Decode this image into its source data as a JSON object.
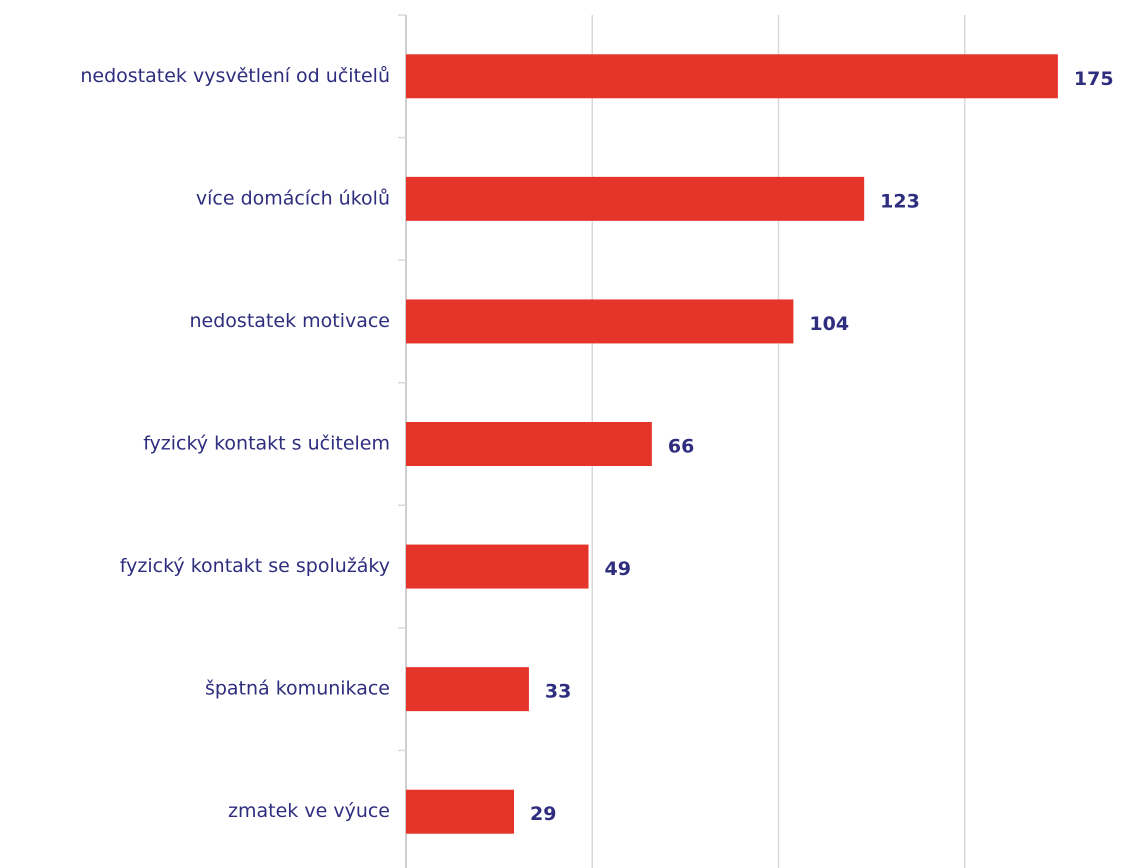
{
  "chart_data": {
    "type": "hbar",
    "categories": [
      "nedostatek vysvětlení od učitelů",
      "více domácích úkolů",
      "nedostatek motivace",
      "fyzický kontakt s učitelem",
      "fyzický kontakt se spolužáky",
      "špatná komunikace",
      "zmatek ve výuce"
    ],
    "values": [
      175,
      123,
      104,
      66,
      49,
      33,
      29
    ],
    "color": "#e5352b",
    "xlim": [
      0,
      200
    ],
    "xticks": [
      0,
      50,
      100,
      150
    ],
    "grid": true,
    "tick_labels": false
  }
}
